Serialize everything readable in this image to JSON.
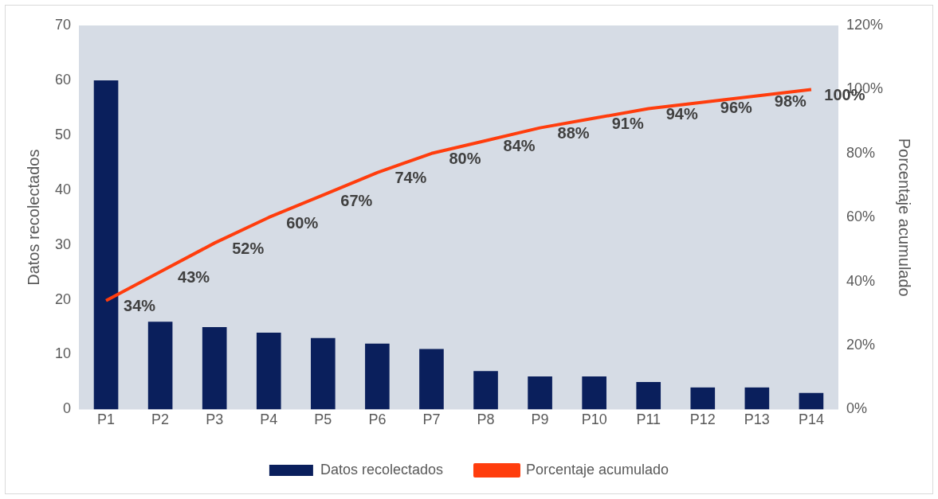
{
  "chart_data": {
    "type": "bar",
    "ylabel": "Datos recolectados",
    "y2label": "Porcentaje acumulado",
    "categories": [
      "P1",
      "P2",
      "P3",
      "P4",
      "P5",
      "P6",
      "P7",
      "P8",
      "P9",
      "P10",
      "P11",
      "P12",
      "P13",
      "P14"
    ],
    "series": [
      {
        "name": "Datos recolectados",
        "color": "#0a1f5c",
        "values": [
          60,
          16,
          15,
          14,
          13,
          12,
          11,
          7,
          6,
          6,
          5,
          4,
          4,
          3
        ]
      },
      {
        "name": "Porcentaje acumulado",
        "type": "line",
        "axis": "y2",
        "color": "#ff3d0d",
        "values": [
          34,
          43,
          52,
          60,
          67,
          74,
          80,
          84,
          88,
          91,
          94,
          96,
          98,
          100
        ],
        "value_labels": [
          "34%",
          "43%",
          "52%",
          "60%",
          "67%",
          "74%",
          "80%",
          "84%",
          "88%",
          "91%",
          "94%",
          "96%",
          "98%",
          "100%"
        ]
      }
    ],
    "ylim": [
      0,
      70
    ],
    "yticks": [
      0,
      10,
      20,
      30,
      40,
      50,
      60,
      70
    ],
    "y2lim": [
      0,
      120
    ],
    "y2ticks": [
      {
        "value": 0,
        "label": "0%"
      },
      {
        "value": 20,
        "label": "20%"
      },
      {
        "value": 40,
        "label": "40%"
      },
      {
        "value": 60,
        "label": "60%"
      },
      {
        "value": 80,
        "label": "80%"
      },
      {
        "value": 100,
        "label": "100%"
      },
      {
        "value": 120,
        "label": "120%"
      }
    ],
    "grid": false,
    "legend": "bottom",
    "marker": "none",
    "line_style": "solid"
  }
}
